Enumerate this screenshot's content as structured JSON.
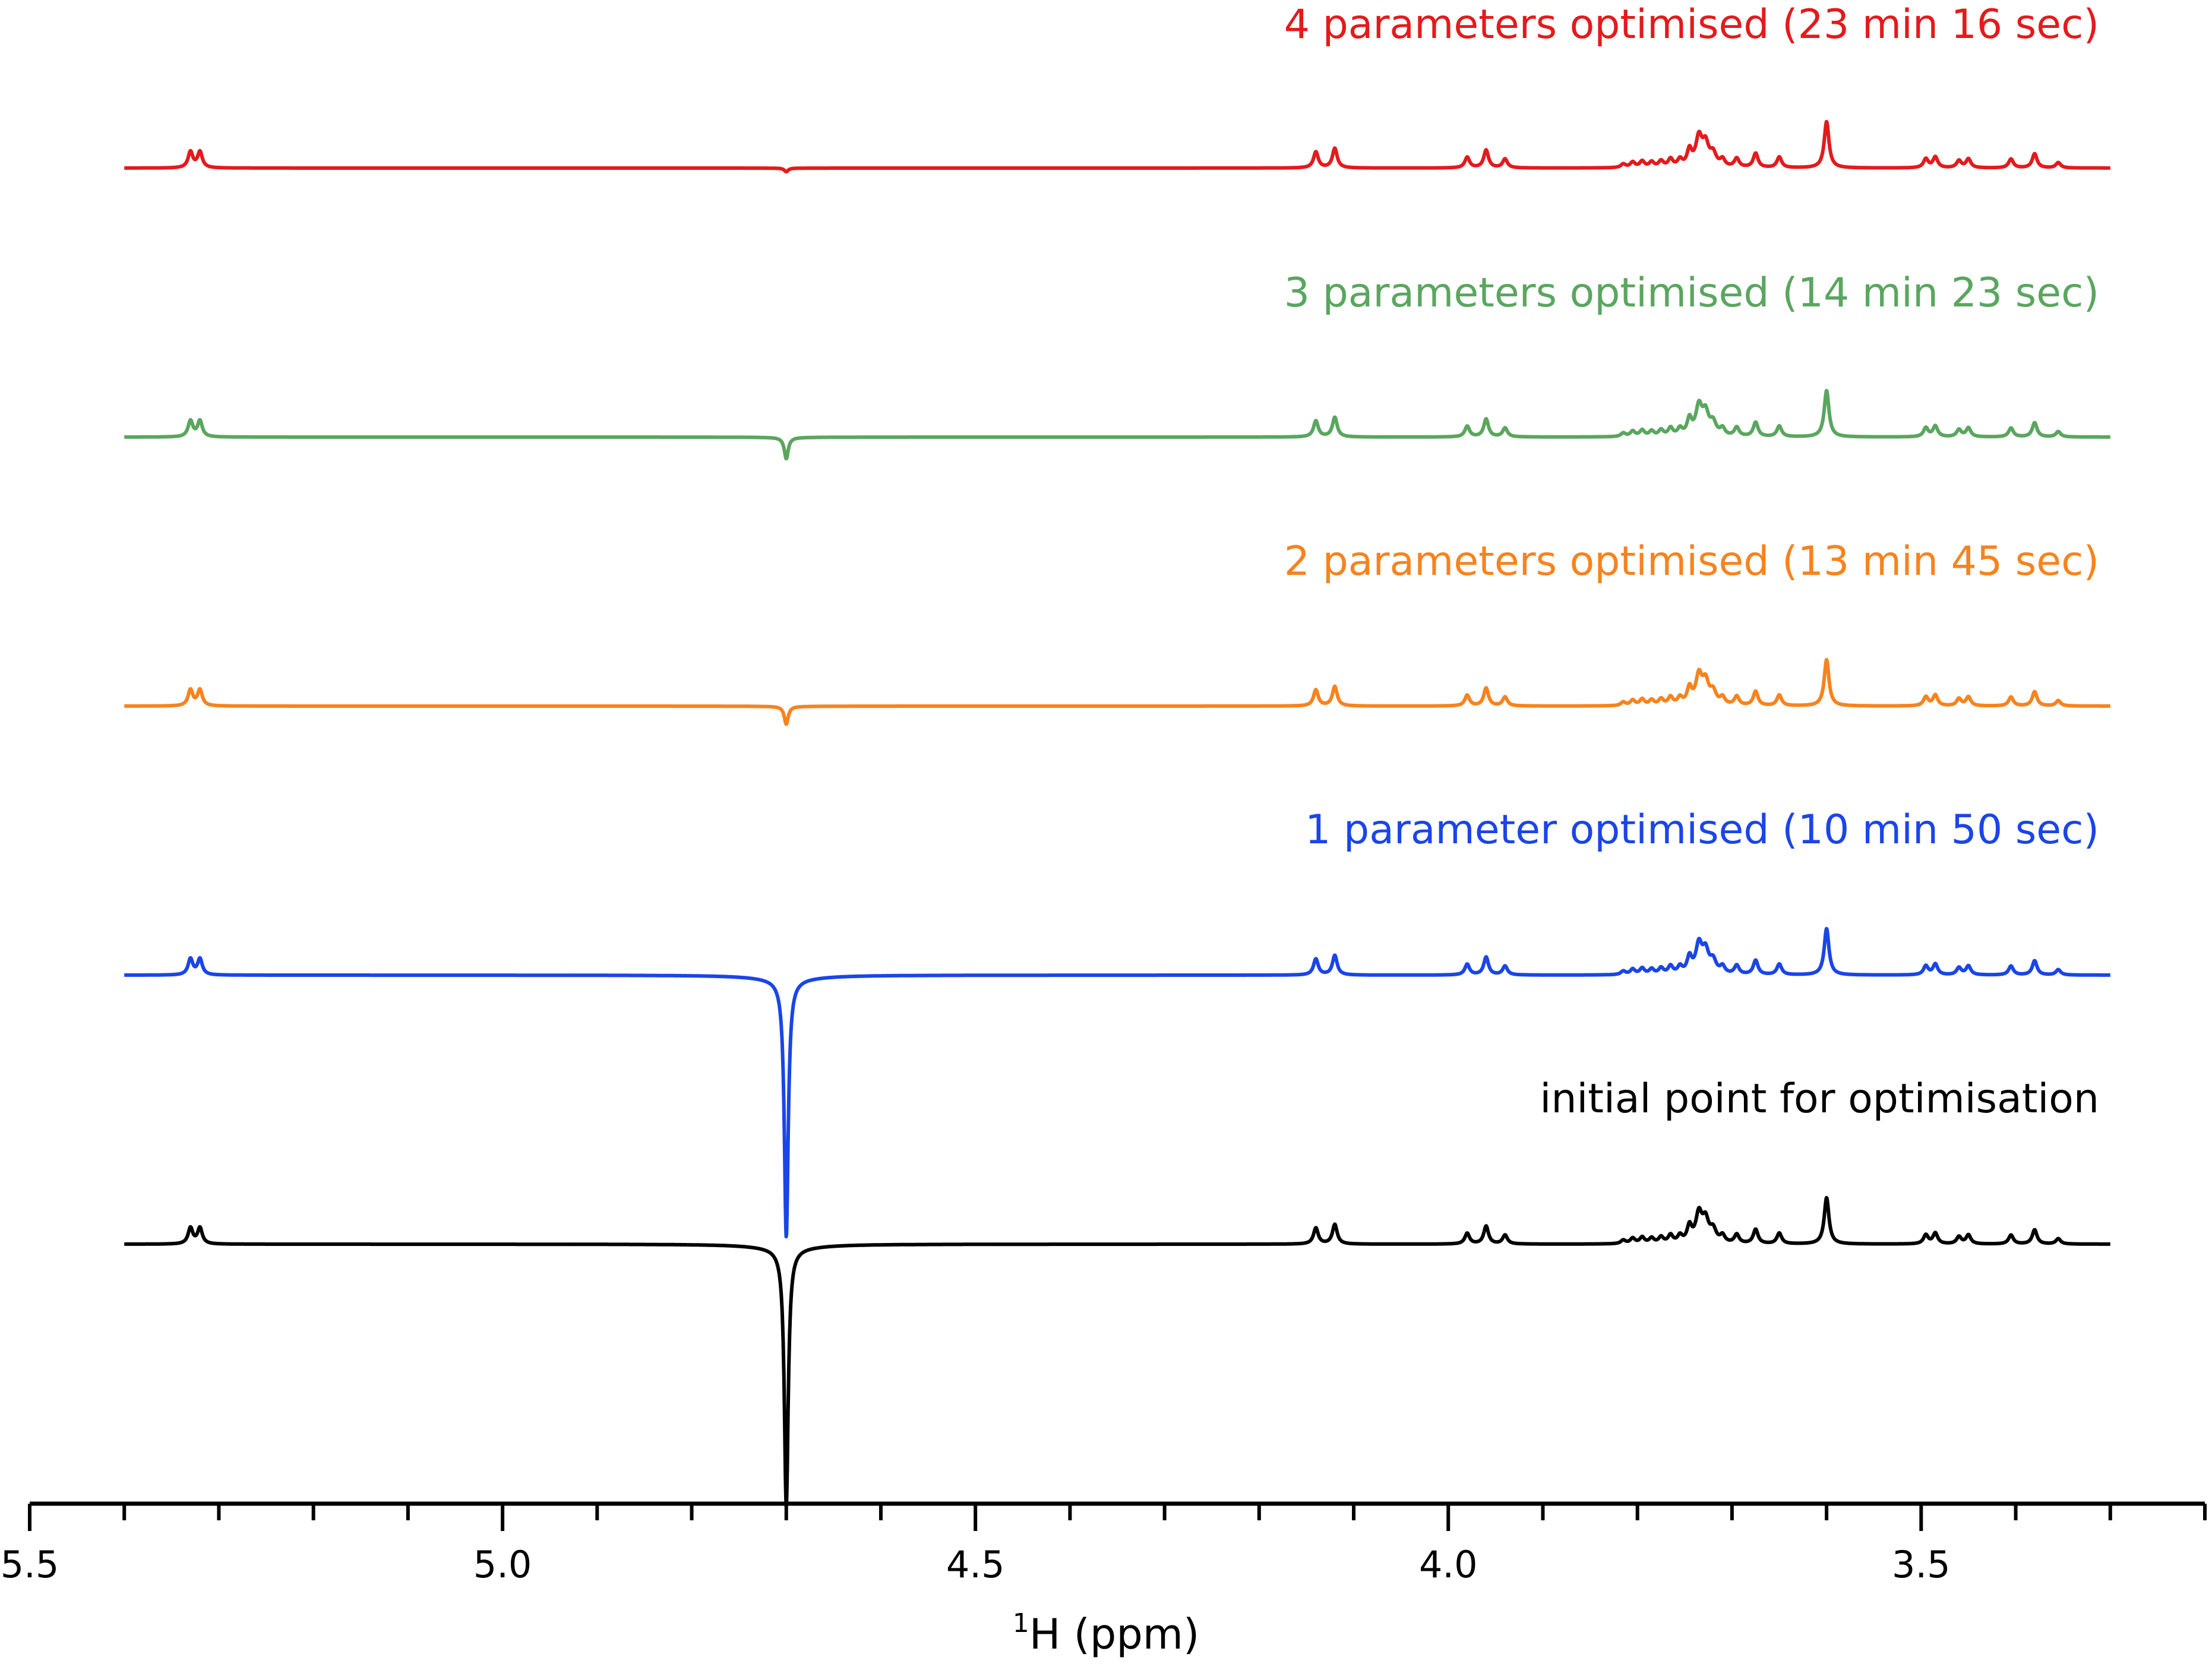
{
  "chart_data": {
    "type": "line",
    "xlabel_sup": "1",
    "xlabel": "H (ppm)",
    "xlim": [
      5.5,
      3.2
    ],
    "x_reversed": true,
    "x_tick_labels": [
      "5.5",
      "5.0",
      "4.5",
      "4.0",
      "3.5"
    ],
    "x_ticks_major": [
      5.5,
      5.0,
      4.5,
      4.0,
      3.5
    ],
    "x_ticks_minor": [
      5.4,
      5.3,
      5.2,
      5.1,
      4.9,
      4.8,
      4.7,
      4.6,
      4.4,
      4.3,
      4.2,
      4.1,
      3.9,
      3.8,
      3.7,
      3.6,
      3.4,
      3.3,
      3.2
    ],
    "y_axis_shown": false,
    "grid": false,
    "legend": "labels above each trace (right-aligned)",
    "peaks": [
      {
        "x": 5.33,
        "h": 0.09,
        "w": 0.003
      },
      {
        "x": 5.32,
        "h": 0.09,
        "w": 0.003
      },
      {
        "x": 4.14,
        "h": 0.09,
        "w": 0.003
      },
      {
        "x": 4.12,
        "h": 0.11,
        "w": 0.003
      },
      {
        "x": 3.98,
        "h": 0.06,
        "w": 0.003
      },
      {
        "x": 3.96,
        "h": 0.1,
        "w": 0.003
      },
      {
        "x": 3.94,
        "h": 0.05,
        "w": 0.003
      },
      {
        "x": 3.815,
        "h": 0.02,
        "w": 0.003
      },
      {
        "x": 3.805,
        "h": 0.03,
        "w": 0.003
      },
      {
        "x": 3.795,
        "h": 0.035,
        "w": 0.003
      },
      {
        "x": 3.785,
        "h": 0.03,
        "w": 0.003
      },
      {
        "x": 3.775,
        "h": 0.035,
        "w": 0.003
      },
      {
        "x": 3.765,
        "h": 0.045,
        "w": 0.003
      },
      {
        "x": 3.755,
        "h": 0.04,
        "w": 0.003
      },
      {
        "x": 3.745,
        "h": 0.09,
        "w": 0.003
      },
      {
        "x": 3.735,
        "h": 0.16,
        "w": 0.004
      },
      {
        "x": 3.728,
        "h": 0.12,
        "w": 0.004
      },
      {
        "x": 3.72,
        "h": 0.07,
        "w": 0.004
      },
      {
        "x": 3.71,
        "h": 0.04,
        "w": 0.003
      },
      {
        "x": 3.695,
        "h": 0.05,
        "w": 0.003
      },
      {
        "x": 3.675,
        "h": 0.08,
        "w": 0.003
      },
      {
        "x": 3.65,
        "h": 0.06,
        "w": 0.003
      },
      {
        "x": 3.6,
        "h": 0.26,
        "w": 0.003
      },
      {
        "x": 3.495,
        "h": 0.05,
        "w": 0.003
      },
      {
        "x": 3.485,
        "h": 0.06,
        "w": 0.003
      },
      {
        "x": 3.46,
        "h": 0.04,
        "w": 0.003
      },
      {
        "x": 3.45,
        "h": 0.05,
        "w": 0.003
      },
      {
        "x": 3.405,
        "h": 0.05,
        "w": 0.003
      },
      {
        "x": 3.38,
        "h": 0.08,
        "w": 0.003
      },
      {
        "x": 3.355,
        "h": 0.03,
        "w": 0.003
      }
    ],
    "water_position": 4.7,
    "series": [
      {
        "name": "4 parameters optimised (23 min 16 sec)",
        "color": "#e41a1c",
        "offset": 4,
        "water_dip": -0.02
      },
      {
        "name": "3 parameters optimised (14 min 23 sec)",
        "color": "#5aa65f",
        "offset": 3,
        "water_dip": -0.12
      },
      {
        "name": "2 parameters optimised (13 min 45 sec)",
        "color": "#f7831e",
        "offset": 2,
        "water_dip": -0.1
      },
      {
        "name": "1 parameter optimised (10 min 50 sec)",
        "color": "#1a45e8",
        "offset": 1,
        "water_dip": -1.45
      },
      {
        "name": "initial point for optimisation",
        "color": "#000000",
        "offset": 0,
        "water_dip": -1.45
      }
    ]
  }
}
